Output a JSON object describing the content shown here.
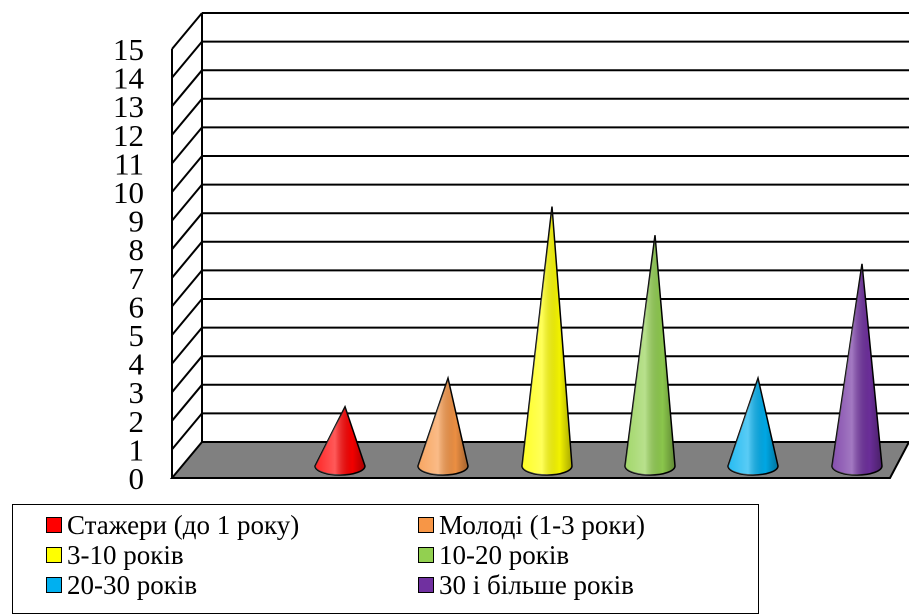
{
  "chart_data": {
    "type": "cone3d",
    "ylim": [
      0,
      15
    ],
    "ytick_labels": [
      "0",
      "1",
      "2",
      "3",
      "4",
      "5",
      "6",
      "7",
      "8",
      "9",
      "10",
      "11",
      "12",
      "13",
      "14",
      "15"
    ],
    "grid": true,
    "legend_position": "bottom",
    "series": [
      {
        "name": "Стажери (до 1 року)",
        "value": 2,
        "color": "#ff0000"
      },
      {
        "name": "Молоді (1-3 роки)",
        "value": 3,
        "color": "#f79646"
      },
      {
        "name": "3-10 років",
        "value": 9,
        "color": "#ffff00"
      },
      {
        "name": "10-20 років",
        "value": 8,
        "color": "#92d050"
      },
      {
        "name": "20-30 років",
        "value": 3,
        "color": "#00b0f0"
      },
      {
        "name": "30 і більше років",
        "value": 7,
        "color": "#7030a0"
      }
    ]
  }
}
